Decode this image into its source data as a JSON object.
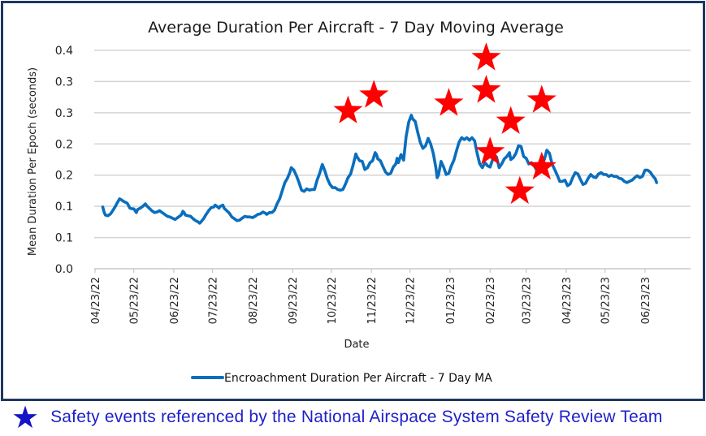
{
  "chart_data": {
    "type": "line",
    "title": "Average Duration Per Aircraft - 7 Day Moving Average",
    "xlabel": "Date",
    "ylabel": "Mean Duration Per Epoch (seconds)",
    "ylim": [
      0,
      0.35
    ],
    "y_ticks": [
      {
        "value": 0.0,
        "label": "0.0"
      },
      {
        "value": 0.05,
        "label": "0.1"
      },
      {
        "value": 0.1,
        "label": "0.1"
      },
      {
        "value": 0.15,
        "label": "0.2"
      },
      {
        "value": 0.2,
        "label": "0.2"
      },
      {
        "value": 0.25,
        "label": "0.3"
      },
      {
        "value": 0.3,
        "label": "0.3"
      },
      {
        "value": 0.35,
        "label": "0.4"
      }
    ],
    "x_start_date": "04/23/22",
    "x_range_days": [
      0,
      461
    ],
    "x_ticks": [
      {
        "day": 0,
        "label": "04/23/22"
      },
      {
        "day": 30,
        "label": "05/23/22"
      },
      {
        "day": 61,
        "label": "06/23/22"
      },
      {
        "day": 91,
        "label": "07/23/22"
      },
      {
        "day": 122,
        "label": "08/23/22"
      },
      {
        "day": 153,
        "label": "09/23/22"
      },
      {
        "day": 183,
        "label": "10/23/22"
      },
      {
        "day": 214,
        "label": "11/23/22"
      },
      {
        "day": 244,
        "label": "12/23/22"
      },
      {
        "day": 275,
        "label": "01/23/23"
      },
      {
        "day": 306,
        "label": "02/23/23"
      },
      {
        "day": 334,
        "label": "03/23/23"
      },
      {
        "day": 365,
        "label": "04/23/23"
      },
      {
        "day": 395,
        "label": "05/23/23"
      },
      {
        "day": 426,
        "label": "06/23/23"
      }
    ],
    "grid": true,
    "legend_position": "bottom",
    "series": [
      {
        "name": "Encroachment Duration Per Aircraft - 7 Day MA",
        "color": "#0a6ebd",
        "points": [
          [
            6,
            0.099
          ],
          [
            7,
            0.091
          ],
          [
            8,
            0.086
          ],
          [
            10,
            0.085
          ],
          [
            12,
            0.088
          ],
          [
            14,
            0.094
          ],
          [
            16,
            0.101
          ],
          [
            17,
            0.105
          ],
          [
            19,
            0.112
          ],
          [
            20,
            0.111
          ],
          [
            22,
            0.108
          ],
          [
            24,
            0.106
          ],
          [
            25,
            0.105
          ],
          [
            26,
            0.101
          ],
          [
            27,
            0.097
          ],
          [
            29,
            0.096
          ],
          [
            30,
            0.096
          ],
          [
            31,
            0.093
          ],
          [
            32,
            0.09
          ],
          [
            33,
            0.095
          ],
          [
            35,
            0.097
          ],
          [
            37,
            0.1
          ],
          [
            39,
            0.104
          ],
          [
            40,
            0.101
          ],
          [
            42,
            0.097
          ],
          [
            44,
            0.093
          ],
          [
            46,
            0.09
          ],
          [
            48,
            0.091
          ],
          [
            50,
            0.093
          ],
          [
            52,
            0.09
          ],
          [
            54,
            0.087
          ],
          [
            56,
            0.084
          ],
          [
            58,
            0.083
          ],
          [
            60,
            0.081
          ],
          [
            62,
            0.079
          ],
          [
            64,
            0.082
          ],
          [
            66,
            0.085
          ],
          [
            67,
            0.087
          ],
          [
            68,
            0.092
          ],
          [
            69,
            0.09
          ],
          [
            70,
            0.086
          ],
          [
            72,
            0.085
          ],
          [
            74,
            0.084
          ],
          [
            76,
            0.08
          ],
          [
            78,
            0.077
          ],
          [
            80,
            0.075
          ],
          [
            81,
            0.073
          ],
          [
            82,
            0.075
          ],
          [
            84,
            0.08
          ],
          [
            86,
            0.087
          ],
          [
            88,
            0.093
          ],
          [
            90,
            0.098
          ],
          [
            92,
            0.099
          ],
          [
            93,
            0.102
          ],
          [
            95,
            0.099
          ],
          [
            96,
            0.097
          ],
          [
            97,
            0.1
          ],
          [
            99,
            0.102
          ],
          [
            100,
            0.097
          ],
          [
            102,
            0.093
          ],
          [
            104,
            0.089
          ],
          [
            106,
            0.083
          ],
          [
            108,
            0.08
          ],
          [
            110,
            0.077
          ],
          [
            112,
            0.078
          ],
          [
            114,
            0.081
          ],
          [
            116,
            0.084
          ],
          [
            118,
            0.083
          ],
          [
            120,
            0.083
          ],
          [
            122,
            0.082
          ],
          [
            124,
            0.084
          ],
          [
            126,
            0.087
          ],
          [
            128,
            0.088
          ],
          [
            130,
            0.091
          ],
          [
            132,
            0.089
          ],
          [
            133,
            0.087
          ],
          [
            135,
            0.09
          ],
          [
            137,
            0.09
          ],
          [
            139,
            0.094
          ],
          [
            141,
            0.104
          ],
          [
            143,
            0.112
          ],
          [
            145,
            0.125
          ],
          [
            147,
            0.138
          ],
          [
            149,
            0.145
          ],
          [
            151,
            0.155
          ],
          [
            152,
            0.162
          ],
          [
            154,
            0.158
          ],
          [
            156,
            0.149
          ],
          [
            158,
            0.138
          ],
          [
            160,
            0.126
          ],
          [
            162,
            0.124
          ],
          [
            164,
            0.128
          ],
          [
            166,
            0.126
          ],
          [
            168,
            0.127
          ],
          [
            170,
            0.127
          ],
          [
            172,
            0.142
          ],
          [
            174,
            0.153
          ],
          [
            176,
            0.167
          ],
          [
            178,
            0.157
          ],
          [
            180,
            0.144
          ],
          [
            182,
            0.135
          ],
          [
            184,
            0.13
          ],
          [
            186,
            0.13
          ],
          [
            188,
            0.127
          ],
          [
            190,
            0.126
          ],
          [
            192,
            0.127
          ],
          [
            194,
            0.136
          ],
          [
            196,
            0.146
          ],
          [
            198,
            0.152
          ],
          [
            200,
            0.167
          ],
          [
            202,
            0.184
          ],
          [
            203,
            0.179
          ],
          [
            205,
            0.173
          ],
          [
            207,
            0.172
          ],
          [
            209,
            0.159
          ],
          [
            211,
            0.162
          ],
          [
            213,
            0.17
          ],
          [
            215,
            0.173
          ],
          [
            217,
            0.186
          ],
          [
            218,
            0.183
          ],
          [
            219,
            0.176
          ],
          [
            221,
            0.173
          ],
          [
            223,
            0.164
          ],
          [
            225,
            0.155
          ],
          [
            227,
            0.151
          ],
          [
            229,
            0.153
          ],
          [
            231,
            0.163
          ],
          [
            233,
            0.168
          ],
          [
            234,
            0.177
          ],
          [
            235,
            0.17
          ],
          [
            237,
            0.183
          ],
          [
            239,
            0.174
          ],
          [
            241,
            0.212
          ],
          [
            243,
            0.235
          ],
          [
            245,
            0.246
          ],
          [
            246,
            0.24
          ],
          [
            248,
            0.236
          ],
          [
            250,
            0.218
          ],
          [
            252,
            0.202
          ],
          [
            254,
            0.193
          ],
          [
            256,
            0.197
          ],
          [
            258,
            0.209
          ],
          [
            260,
            0.2
          ],
          [
            262,
            0.185
          ],
          [
            264,
            0.162
          ],
          [
            265,
            0.146
          ],
          [
            266,
            0.15
          ],
          [
            268,
            0.172
          ],
          [
            270,
            0.163
          ],
          [
            272,
            0.151
          ],
          [
            274,
            0.153
          ],
          [
            276,
            0.165
          ],
          [
            278,
            0.174
          ],
          [
            280,
            0.189
          ],
          [
            282,
            0.203
          ],
          [
            284,
            0.21
          ],
          [
            286,
            0.207
          ],
          [
            288,
            0.21
          ],
          [
            290,
            0.206
          ],
          [
            292,
            0.21
          ],
          [
            294,
            0.205
          ],
          [
            296,
            0.185
          ],
          [
            298,
            0.168
          ],
          [
            300,
            0.162
          ],
          [
            302,
            0.17
          ],
          [
            304,
            0.165
          ],
          [
            306,
            0.163
          ],
          [
            308,
            0.175
          ],
          [
            309,
            0.183
          ],
          [
            311,
            0.179
          ],
          [
            313,
            0.162
          ],
          [
            315,
            0.168
          ],
          [
            317,
            0.176
          ],
          [
            319,
            0.18
          ],
          [
            321,
            0.186
          ],
          [
            322,
            0.175
          ],
          [
            324,
            0.178
          ],
          [
            326,
            0.185
          ],
          [
            328,
            0.197
          ],
          [
            330,
            0.196
          ],
          [
            332,
            0.18
          ],
          [
            334,
            0.177
          ],
          [
            336,
            0.168
          ],
          [
            338,
            0.17
          ],
          [
            340,
            0.166
          ],
          [
            342,
            0.158
          ],
          [
            344,
            0.16
          ],
          [
            346,
            0.173
          ],
          [
            348,
            0.175
          ],
          [
            350,
            0.19
          ],
          [
            352,
            0.185
          ],
          [
            354,
            0.168
          ],
          [
            356,
            0.159
          ],
          [
            358,
            0.15
          ],
          [
            360,
            0.14
          ],
          [
            362,
            0.14
          ],
          [
            364,
            0.142
          ],
          [
            366,
            0.133
          ],
          [
            368,
            0.136
          ],
          [
            370,
            0.146
          ],
          [
            372,
            0.154
          ],
          [
            374,
            0.152
          ],
          [
            376,
            0.143
          ],
          [
            378,
            0.135
          ],
          [
            380,
            0.137
          ],
          [
            382,
            0.145
          ],
          [
            384,
            0.151
          ],
          [
            386,
            0.147
          ],
          [
            388,
            0.146
          ],
          [
            390,
            0.152
          ],
          [
            392,
            0.154
          ],
          [
            394,
            0.151
          ],
          [
            396,
            0.151
          ],
          [
            398,
            0.148
          ],
          [
            400,
            0.15
          ],
          [
            402,
            0.148
          ],
          [
            404,
            0.148
          ],
          [
            406,
            0.145
          ],
          [
            408,
            0.144
          ],
          [
            410,
            0.14
          ],
          [
            412,
            0.138
          ],
          [
            414,
            0.14
          ],
          [
            416,
            0.142
          ],
          [
            418,
            0.146
          ],
          [
            420,
            0.149
          ],
          [
            422,
            0.146
          ],
          [
            424,
            0.148
          ],
          [
            426,
            0.158
          ],
          [
            428,
            0.158
          ],
          [
            430,
            0.155
          ],
          [
            432,
            0.149
          ],
          [
            434,
            0.144
          ],
          [
            435,
            0.138
          ]
        ]
      }
    ],
    "annotations": {
      "marker": "red-star",
      "marker_color": "#ff0000",
      "points": [
        [
          196,
          0.253
        ],
        [
          216,
          0.278
        ],
        [
          274,
          0.265
        ],
        [
          303,
          0.338
        ],
        [
          303,
          0.286
        ],
        [
          322,
          0.236
        ],
        [
          306,
          0.187
        ],
        [
          346,
          0.27
        ],
        [
          346,
          0.163
        ],
        [
          329,
          0.124
        ]
      ]
    }
  },
  "legend": {
    "label": "Encroachment Duration Per Aircraft - 7 Day MA"
  },
  "footer": {
    "icon": "blue-star-icon",
    "icon_glyph": "★",
    "icon_color": "#1414c8",
    "text": "Safety events referenced by the National Airspace System Safety Review Team"
  }
}
